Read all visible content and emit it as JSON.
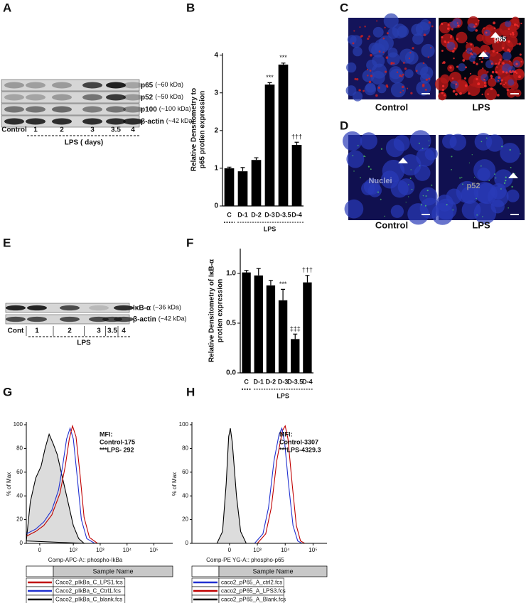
{
  "panel_labels": [
    "A",
    "B",
    "C",
    "D",
    "E",
    "F",
    "G",
    "H"
  ],
  "blot_a": {
    "bands": [
      {
        "name": "p65",
        "size": "(~60 kDa)"
      },
      {
        "name": "p52",
        "size": "(~50 kDa)"
      },
      {
        "name": "p100",
        "size": "(~100 kDa)"
      },
      {
        "name": "β-actin",
        "size": "(~42 kDa)"
      }
    ],
    "lanes": [
      "Control",
      "1",
      "2",
      "3",
      "3.5",
      "4"
    ],
    "group": "LPS ( days)"
  },
  "blot_e": {
    "bands": [
      {
        "name": "IκB-α",
        "size": "(~36 kDa)"
      },
      {
        "name": "β-actin",
        "size": "(~42 kDa)"
      }
    ],
    "lanes": [
      "Cont",
      "1",
      "2",
      "3",
      "3.5",
      "4"
    ],
    "group": "LPS"
  },
  "micrographs_c": {
    "panels": [
      "Control",
      "LPS"
    ],
    "marker": "p65"
  },
  "micrographs_d": {
    "panels": [
      "Control",
      "LPS"
    ],
    "labels": [
      "Nuclei",
      "p52"
    ]
  },
  "chart_data": [
    {
      "type": "bar",
      "ylabel": [
        "Relative Densitometry to",
        "p65 protien expression"
      ],
      "categories": [
        "C",
        "D-1",
        "D-2",
        "D-3",
        "D-3.5",
        "D-4"
      ],
      "values": [
        1.0,
        0.92,
        1.22,
        3.22,
        3.75,
        1.62
      ],
      "errors": [
        0.03,
        0.1,
        0.06,
        0.05,
        0.04,
        0.07
      ],
      "color": "#000000",
      "ylim": [
        0,
        4.05
      ],
      "yticks": [
        0,
        1,
        2,
        3,
        4
      ],
      "group_label": "LPS",
      "annotations": [
        {
          "category": "D-3",
          "text": "***"
        },
        {
          "category": "D-3.5",
          "text": "***"
        },
        {
          "category": "D-4",
          "text": "†††"
        }
      ]
    },
    {
      "type": "bar",
      "ylabel": [
        "Relative Densitometry of IκB-α",
        "protien expression"
      ],
      "categories": [
        "C",
        "D-1",
        "D-2",
        "D-3",
        "D-3.5",
        "D-4"
      ],
      "values": [
        1.01,
        0.98,
        0.88,
        0.73,
        0.34,
        0.91
      ],
      "errors": [
        0.02,
        0.07,
        0.05,
        0.11,
        0.05,
        0.07
      ],
      "color": "#000000",
      "ylim": [
        0,
        1.25
      ],
      "yticks": [
        {
          "value": 0,
          "label": "0.0"
        },
        {
          "value": 0.5,
          "label": "0.5"
        },
        {
          "value": 1,
          "label": "1.0"
        }
      ],
      "group_label": "LPS",
      "annotations": [
        {
          "category": "D-3",
          "text": "***"
        },
        {
          "category": "D-3.5",
          "text": "‡‡‡"
        },
        {
          "category": "D-4",
          "text": "†††"
        }
      ]
    },
    {
      "type": "line",
      "ylabel": "% of Max",
      "xlabel": "Comp-APC-A:: phospho-IkBa",
      "xlim": [
        0.25,
        5.7
      ],
      "ylim": [
        0,
        100
      ],
      "xticks": [
        {
          "value": 0.75,
          "label": "0"
        },
        {
          "value": 2,
          "label": "10²"
        },
        {
          "value": 3,
          "label": "10³"
        },
        {
          "value": 4,
          "label": "10⁴"
        },
        {
          "value": 5,
          "label": "10⁵"
        }
      ],
      "yticks": [
        0,
        20,
        40,
        60,
        80,
        100
      ],
      "annotation": [
        "MFI:",
        "Control-175",
        "***LPS- 292"
      ],
      "legend_title": "Sample Name",
      "series": [
        {
          "name": "Caco2_pIkBa_C_LPS1.fcs",
          "color": "#c00000",
          "x": [
            0.25,
            0.6,
            0.9,
            1.2,
            1.5,
            1.7,
            1.85,
            1.97,
            2.1,
            2.25,
            2.4,
            2.6,
            2.9
          ],
          "values": [
            6,
            10,
            15,
            24,
            42,
            65,
            88,
            99,
            90,
            58,
            22,
            5,
            0
          ]
        },
        {
          "name": "Caco2_pIkBa_C_Ctrl1.fcs",
          "color": "#2030d0",
          "x": [
            0.25,
            0.6,
            0.9,
            1.2,
            1.45,
            1.6,
            1.75,
            1.88,
            2.0,
            2.15,
            2.3,
            2.5,
            2.8
          ],
          "values": [
            8,
            12,
            18,
            28,
            45,
            65,
            88,
            97,
            88,
            55,
            20,
            4,
            0
          ]
        },
        {
          "name": "Caco2_pIkBa_C_blank.fcs",
          "color": "#000000",
          "fill": "#dcdcdc",
          "x": [
            0.25,
            0.4,
            0.6,
            0.8,
            0.95,
            1.1,
            1.25,
            1.4,
            1.6,
            1.8,
            2.0,
            2.2,
            2.4
          ],
          "values": [
            2,
            35,
            55,
            65,
            80,
            92,
            84,
            75,
            55,
            35,
            15,
            4,
            0
          ]
        }
      ]
    },
    {
      "type": "line",
      "ylabel": "% of Max",
      "xlabel": "Comp-PE YG-A:: phospho-p65",
      "xlim": [
        0.65,
        5.5
      ],
      "ylim": [
        0,
        100
      ],
      "xticks": [
        {
          "value": 2,
          "label": "0"
        },
        {
          "value": 3,
          "label": "10³"
        },
        {
          "value": 4,
          "label": "10⁴"
        },
        {
          "value": 5,
          "label": "10⁵"
        }
      ],
      "yticks": [
        0,
        20,
        40,
        60,
        80,
        100
      ],
      "annotation": [
        "MFI:",
        "Control-3307",
        "***LPS-4329.3"
      ],
      "legend_title": "Sample Name",
      "series": [
        {
          "name": "caco2_pP65_A_ctrl2.fcs",
          "color": "#2030d0",
          "x": [
            2.9,
            3.2,
            3.4,
            3.6,
            3.78,
            3.88,
            3.98,
            4.12,
            4.28,
            4.45,
            4.6
          ],
          "values": [
            0,
            8,
            30,
            70,
            92,
            97,
            85,
            50,
            15,
            2,
            0
          ]
        },
        {
          "name": "caco2_pP65_A_LPS3.fcs",
          "color": "#c00000",
          "x": [
            3.0,
            3.3,
            3.5,
            3.7,
            3.9,
            4.0,
            4.1,
            4.25,
            4.4,
            4.55,
            4.7
          ],
          "values": [
            0,
            8,
            30,
            70,
            95,
            99,
            88,
            50,
            15,
            2,
            0
          ]
        },
        {
          "name": "caco2_pP65_A_Blank.fcs",
          "color": "#000000",
          "fill": "#dcdcdc",
          "x": [
            1.55,
            1.75,
            1.88,
            1.97,
            2.03,
            2.1,
            2.25,
            2.4,
            2.6
          ],
          "values": [
            0,
            10,
            50,
            90,
            97,
            85,
            40,
            10,
            0
          ]
        }
      ]
    }
  ]
}
